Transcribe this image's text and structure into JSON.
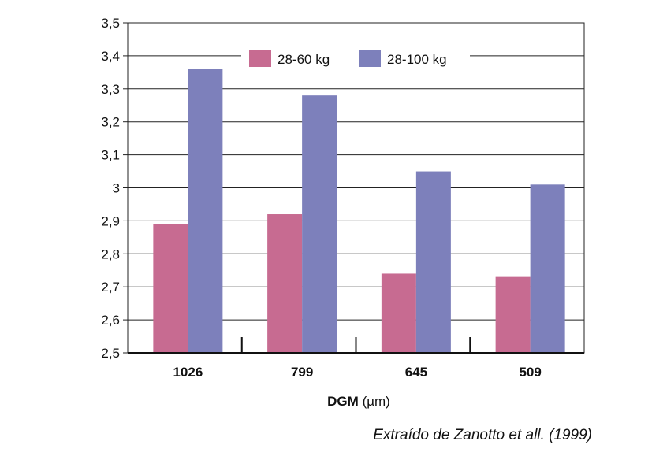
{
  "chart_data": {
    "type": "bar",
    "categories": [
      "1026",
      "799",
      "645",
      "509"
    ],
    "series": [
      {
        "name": "28-60 kg",
        "values": [
          2.89,
          2.92,
          2.74,
          2.73
        ],
        "color": "#c76b91"
      },
      {
        "name": "28-100 kg",
        "values": [
          3.36,
          3.28,
          3.05,
          3.01
        ],
        "color": "#7d80bb"
      }
    ],
    "xlabel_bold": "DGM",
    "xlabel_unit": "(µm)",
    "ylabel": "",
    "ylim": [
      2.5,
      3.5
    ],
    "yticks": [
      "2,5",
      "2,6",
      "2,7",
      "2,8",
      "2,9",
      "3",
      "3,1",
      "3,2",
      "3,3",
      "3,4",
      "3,5"
    ],
    "grid": true,
    "legend_position": "top"
  },
  "source_note": "Extraído de Zanotto et all. (1999)"
}
